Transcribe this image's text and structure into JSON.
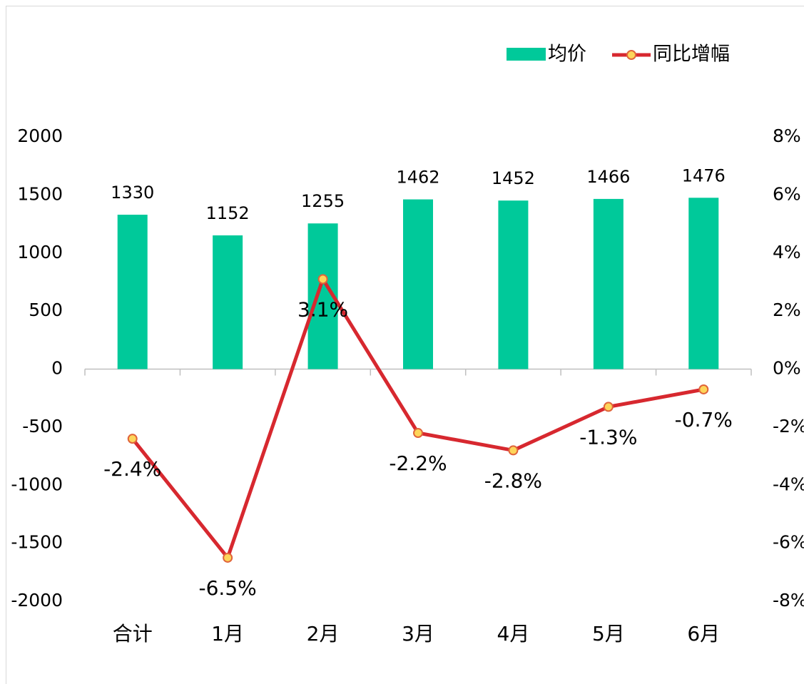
{
  "chart_data": {
    "type": "bar_line",
    "categories": [
      "合计",
      "1月",
      "2月",
      "3月",
      "4月",
      "5月",
      "6月"
    ],
    "series": [
      {
        "name": "均价",
        "color": "#00c99a",
        "values": [
          1330,
          1152,
          1255,
          1462,
          1452,
          1466,
          1476
        ]
      },
      {
        "name": "同比增幅",
        "color": "#d7282f",
        "marker_color": "#fdd55a",
        "axis": "y2",
        "values": [
          -2.4,
          -6.5,
          3.1,
          -2.2,
          -2.8,
          -1.3,
          -0.7
        ],
        "value_labels": [
          "-2.4%",
          "-6.5%",
          "3.1%",
          "-2.2%",
          "-2.8%",
          "-1.3%",
          "-0.7%"
        ]
      }
    ],
    "ylim": [
      -2000,
      2000
    ],
    "yticks": [
      -2000,
      -1500,
      -1000,
      -500,
      0,
      500,
      1000,
      1500,
      2000
    ],
    "y2lim": [
      -8,
      8
    ],
    "y2ticks": [
      {
        "value": -8,
        "label": "-8%"
      },
      {
        "value": -6,
        "label": "-6%"
      },
      {
        "value": -4,
        "label": "-4%"
      },
      {
        "value": -2,
        "label": "-2%"
      },
      {
        "value": 0,
        "label": "0%"
      },
      {
        "value": 2,
        "label": "2%"
      },
      {
        "value": 4,
        "label": "4%"
      },
      {
        "value": 6,
        "label": "6%"
      },
      {
        "value": 8,
        "label": "8%"
      }
    ],
    "legend": "top-right",
    "grid": false
  }
}
